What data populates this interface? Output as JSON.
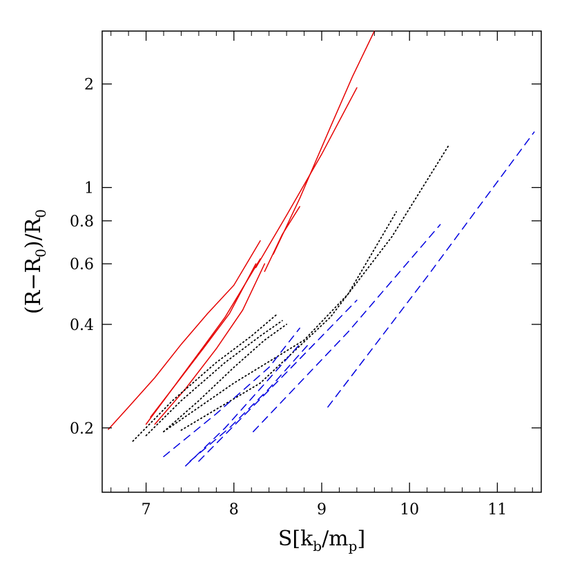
{
  "chart_data": {
    "type": "line",
    "xlabel": {
      "main": "S[k",
      "sub1": "b",
      "mid": "/m",
      "sub2": "p",
      "end": "]"
    },
    "ylabel": {
      "main": "(R−R",
      "sub1": "0",
      "mid": ")/R",
      "sub2": "0"
    },
    "xlim": [
      6.5,
      11.5
    ],
    "ylim": [
      0.13,
      2.85
    ],
    "yscale": "log",
    "x_ticks": [
      7,
      8,
      9,
      10,
      11
    ],
    "x_tick_labels": [
      "7",
      "8",
      "9",
      "10",
      "11"
    ],
    "y_ticks": [
      0.2,
      0.4,
      0.6,
      0.8,
      1,
      2
    ],
    "y_tick_labels": [
      "0.2",
      "0.4",
      "0.6",
      "0.8",
      "1",
      "2"
    ],
    "grid": false,
    "groups": [
      {
        "color": "#e60000",
        "style": "solid",
        "lines": [
          [
            [
              6.57,
              0.198
            ],
            [
              6.8,
              0.23
            ],
            [
              7.1,
              0.28
            ],
            [
              7.4,
              0.35
            ],
            [
              7.7,
              0.43
            ],
            [
              8.0,
              0.52
            ],
            [
              8.3,
              0.7
            ]
          ],
          [
            [
              7.0,
              0.205
            ],
            [
              7.3,
              0.26
            ],
            [
              7.6,
              0.33
            ],
            [
              7.9,
              0.42
            ],
            [
              8.3,
              0.62
            ]
          ],
          [
            [
              7.05,
              0.215
            ],
            [
              7.35,
              0.27
            ],
            [
              7.65,
              0.34
            ],
            [
              7.95,
              0.43
            ],
            [
              8.25,
              0.6
            ]
          ],
          [
            [
              7.1,
              0.205
            ],
            [
              7.45,
              0.26
            ],
            [
              7.8,
              0.34
            ],
            [
              8.1,
              0.44
            ],
            [
              8.35,
              0.6
            ]
          ],
          [
            [
              8.35,
              0.57
            ],
            [
              8.55,
              0.73
            ],
            [
              8.75,
              0.88
            ]
          ],
          [
            [
              8.25,
              0.585
            ],
            [
              8.6,
              0.83
            ],
            [
              9.0,
              1.25
            ],
            [
              9.4,
              1.95
            ]
          ],
          [
            [
              8.45,
              0.64
            ],
            [
              8.75,
              0.93
            ],
            [
              9.1,
              1.5
            ],
            [
              9.35,
              2.1
            ],
            [
              9.6,
              2.85
            ]
          ]
        ]
      },
      {
        "color": "#000000",
        "style": "dotted",
        "lines": [
          [
            [
              6.85,
              0.183
            ],
            [
              7.3,
              0.24
            ],
            [
              7.8,
              0.31
            ],
            [
              8.2,
              0.37
            ],
            [
              8.5,
              0.43
            ]
          ],
          [
            [
              7.0,
              0.19
            ],
            [
              7.4,
              0.24
            ],
            [
              7.9,
              0.31
            ],
            [
              8.3,
              0.37
            ],
            [
              8.55,
              0.41
            ]
          ],
          [
            [
              7.2,
              0.195
            ],
            [
              7.6,
              0.24
            ],
            [
              8.0,
              0.3
            ],
            [
              8.35,
              0.36
            ],
            [
              8.6,
              0.4
            ]
          ],
          [
            [
              7.2,
              0.195
            ],
            [
              8.0,
              0.27
            ],
            [
              8.8,
              0.36
            ],
            [
              9.3,
              0.49
            ],
            [
              9.85,
              0.85
            ]
          ],
          [
            [
              7.4,
              0.197
            ],
            [
              8.3,
              0.27
            ],
            [
              9.1,
              0.42
            ],
            [
              9.8,
              0.72
            ],
            [
              10.45,
              1.33
            ]
          ]
        ]
      },
      {
        "color": "#0000e0",
        "style": "dashed",
        "lines": [
          [
            [
              7.2,
              0.165
            ],
            [
              7.8,
              0.22
            ],
            [
              8.4,
              0.3
            ],
            [
              8.75,
              0.39
            ]
          ],
          [
            [
              7.45,
              0.155
            ],
            [
              7.9,
              0.2
            ],
            [
              8.3,
              0.26
            ],
            [
              8.75,
              0.35
            ]
          ],
          [
            [
              7.5,
              0.16
            ],
            [
              7.95,
              0.2
            ],
            [
              8.4,
              0.26
            ],
            [
              8.85,
              0.35
            ]
          ],
          [
            [
              7.6,
              0.16
            ],
            [
              8.6,
              0.29
            ],
            [
              9.4,
              0.47
            ]
          ],
          [
            [
              8.22,
              0.195
            ],
            [
              9.3,
              0.38
            ],
            [
              10.35,
              0.78
            ]
          ],
          [
            [
              9.07,
              0.23
            ],
            [
              10.2,
              0.55
            ],
            [
              11.42,
              1.45
            ]
          ]
        ]
      }
    ]
  }
}
